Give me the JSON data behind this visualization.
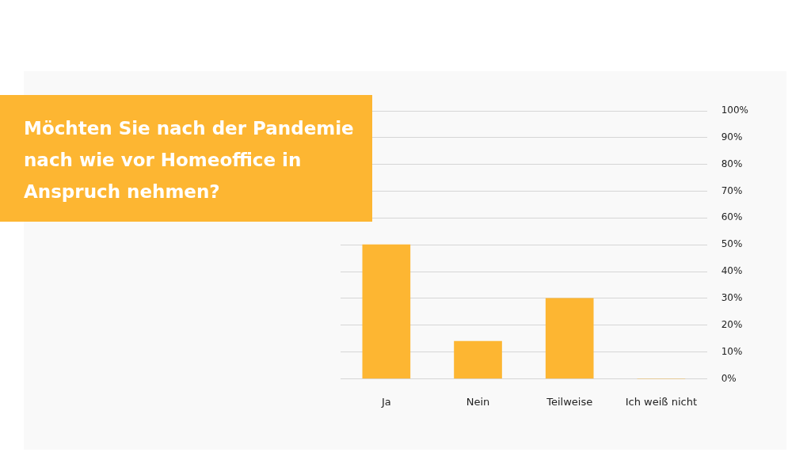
{
  "chart_data": {
    "type": "bar",
    "title": "Möchten Sie nach der Pandemie nach wie vor Homeoffice in Anspruch nehmen?",
    "categories": [
      "Ja",
      "Nein",
      "Teilweise",
      "Ich weiß nicht"
    ],
    "values": [
      50,
      14,
      30,
      0
    ],
    "color": "#fdb632",
    "ylim": [
      0,
      100
    ],
    "yticks": [
      {
        "value": 0,
        "label": "0%"
      },
      {
        "value": 10,
        "label": "10%"
      },
      {
        "value": 20,
        "label": "20%"
      },
      {
        "value": 30,
        "label": "30%"
      },
      {
        "value": 40,
        "label": "40%"
      },
      {
        "value": 50,
        "label": "50%"
      },
      {
        "value": 60,
        "label": "60%"
      },
      {
        "value": 70,
        "label": "70%"
      },
      {
        "value": 80,
        "label": "80%"
      },
      {
        "value": 90,
        "label": "90%"
      },
      {
        "value": 100,
        "label": "100%"
      }
    ],
    "grid": "y",
    "legend": false
  }
}
